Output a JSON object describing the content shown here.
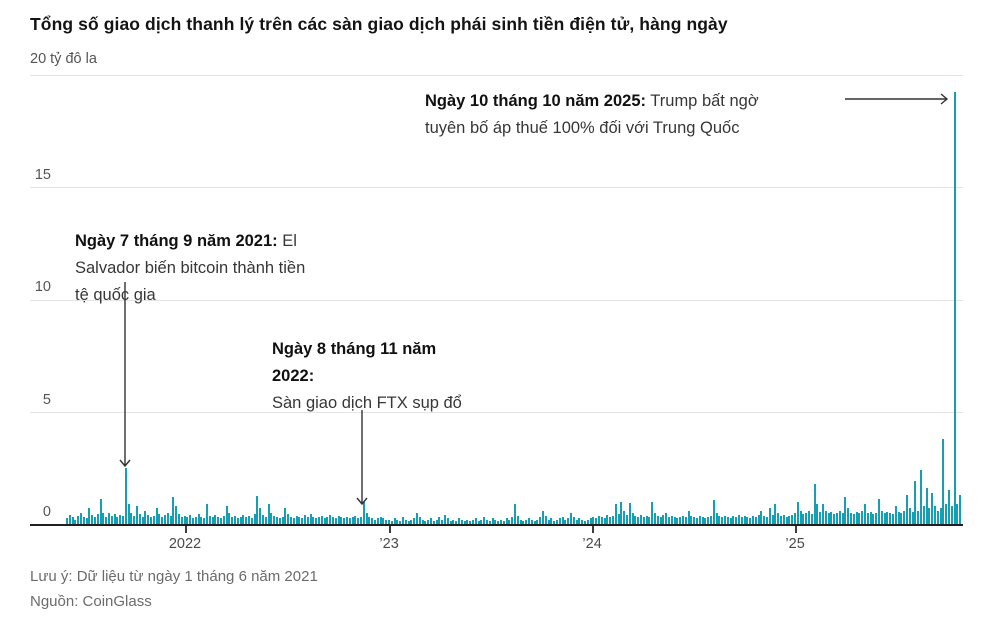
{
  "title": "Tổng số giao dịch thanh lý trên các sàn giao dịch phái sinh tiền điện tử, hàng ngày",
  "notes": {
    "line1": "Lưu ý: Dữ liệu từ ngày 1 tháng 6 năm 2021",
    "line2": "Nguồn: CoinGlass"
  },
  "colors": {
    "bar": "#169eb1",
    "grid": "#e4e4e4",
    "axis": "#1f1f1f",
    "labels": "#555555",
    "arrow": "#333333"
  },
  "chart_data": {
    "type": "bar",
    "title": "Tổng số giao dịch thanh lý trên các sàn giao dịch phái sinh tiền điện tử, hàng ngày",
    "unit_label": "20 tỷ đô la",
    "ylabel": "tỷ đô la",
    "ylim": [
      0,
      20
    ],
    "y_ticks": [
      0,
      5,
      10,
      15
    ],
    "grid_values": [
      5,
      10,
      15,
      20
    ],
    "x_range": [
      "6/2021",
      "10/2025"
    ],
    "x_ticks": [
      {
        "label": "2022",
        "bar_index": 42.5
      },
      {
        "label": "’23",
        "bar_index": 115.4
      },
      {
        "label": "’24",
        "bar_index": 187.9
      },
      {
        "label": "’25",
        "bar_index": 260.4
      }
    ],
    "values": [
      0.25,
      0.4,
      0.3,
      0.2,
      0.35,
      0.5,
      0.3,
      0.25,
      0.7,
      0.4,
      0.3,
      0.45,
      1.1,
      0.5,
      0.3,
      0.5,
      0.35,
      0.45,
      0.3,
      0.4,
      0.35,
      2.5,
      0.9,
      0.5,
      0.35,
      0.8,
      0.45,
      0.3,
      0.6,
      0.4,
      0.3,
      0.35,
      0.7,
      0.45,
      0.3,
      0.4,
      0.5,
      0.35,
      1.2,
      0.8,
      0.45,
      0.3,
      0.35,
      0.3,
      0.4,
      0.25,
      0.3,
      0.45,
      0.3,
      0.25,
      0.9,
      0.35,
      0.3,
      0.4,
      0.3,
      0.25,
      0.35,
      0.8,
      0.5,
      0.3,
      0.35,
      0.25,
      0.3,
      0.4,
      0.3,
      0.35,
      0.25,
      0.45,
      1.25,
      0.7,
      0.4,
      0.3,
      0.9,
      0.5,
      0.35,
      0.3,
      0.25,
      0.3,
      0.7,
      0.45,
      0.3,
      0.25,
      0.35,
      0.3,
      0.25,
      0.4,
      0.3,
      0.45,
      0.3,
      0.25,
      0.3,
      0.35,
      0.25,
      0.3,
      0.4,
      0.3,
      0.25,
      0.35,
      0.3,
      0.25,
      0.3,
      0.25,
      0.3,
      0.35,
      0.25,
      0.3,
      1.0,
      0.5,
      0.3,
      0.25,
      0.2,
      0.25,
      0.3,
      0.25,
      0.2,
      0.2,
      0.15,
      0.25,
      0.2,
      0.15,
      0.3,
      0.2,
      0.15,
      0.2,
      0.25,
      0.5,
      0.3,
      0.2,
      0.15,
      0.2,
      0.25,
      0.15,
      0.2,
      0.3,
      0.2,
      0.4,
      0.25,
      0.15,
      0.2,
      0.15,
      0.25,
      0.2,
      0.15,
      0.2,
      0.15,
      0.2,
      0.25,
      0.15,
      0.2,
      0.3,
      0.2,
      0.15,
      0.25,
      0.2,
      0.15,
      0.2,
      0.15,
      0.25,
      0.2,
      0.3,
      0.9,
      0.35,
      0.2,
      0.15,
      0.2,
      0.25,
      0.2,
      0.15,
      0.2,
      0.3,
      0.6,
      0.35,
      0.2,
      0.25,
      0.15,
      0.2,
      0.25,
      0.3,
      0.2,
      0.25,
      0.5,
      0.3,
      0.2,
      0.25,
      0.2,
      0.15,
      0.2,
      0.25,
      0.3,
      0.25,
      0.35,
      0.3,
      0.25,
      0.4,
      0.3,
      0.35,
      0.9,
      0.45,
      1.0,
      0.6,
      0.4,
      0.95,
      0.5,
      0.35,
      0.3,
      0.4,
      0.3,
      0.35,
      0.3,
      1.0,
      0.5,
      0.35,
      0.3,
      0.4,
      0.5,
      0.3,
      0.35,
      0.3,
      0.25,
      0.3,
      0.35,
      0.3,
      0.6,
      0.35,
      0.3,
      0.25,
      0.35,
      0.3,
      0.25,
      0.3,
      0.35,
      1.05,
      0.5,
      0.35,
      0.3,
      0.35,
      0.3,
      0.25,
      0.35,
      0.3,
      0.4,
      0.3,
      0.35,
      0.3,
      0.25,
      0.35,
      0.3,
      0.4,
      0.6,
      0.35,
      0.3,
      0.7,
      0.4,
      0.9,
      0.5,
      0.35,
      0.4,
      0.3,
      0.35,
      0.4,
      0.5,
      1.0,
      0.6,
      0.45,
      0.5,
      0.6,
      0.45,
      1.8,
      0.9,
      0.55,
      0.9,
      0.6,
      0.5,
      0.55,
      0.45,
      0.5,
      0.6,
      0.5,
      1.2,
      0.7,
      0.5,
      0.45,
      0.55,
      0.5,
      0.6,
      0.9,
      0.5,
      0.55,
      0.45,
      0.5,
      1.1,
      0.6,
      0.5,
      0.55,
      0.5,
      0.45,
      0.8,
      0.55,
      0.5,
      0.6,
      1.3,
      0.7,
      0.55,
      1.9,
      0.6,
      2.4,
      0.8,
      1.6,
      0.7,
      1.4,
      0.8,
      0.6,
      0.7,
      3.8,
      0.9,
      1.5,
      0.8,
      19.2,
      0.9,
      1.3
    ],
    "annotations": [
      {
        "name": "el-salvador",
        "y_value": 2.5,
        "lines": [
          {
            "bold": "Ngày 7 tháng 9 năm 2021:",
            "text": " El"
          },
          {
            "text": "Salvador biến bitcoin thành tiền"
          },
          {
            "text": "tệ quốc gia"
          }
        ]
      },
      {
        "name": "ftx-collapse",
        "y_value": 1.0,
        "lines": [
          {
            "bold": "Ngày 8 tháng 11 năm"
          },
          {
            "bold": "2022:"
          },
          {
            "text": "Sàn giao dịch FTX sụp đổ"
          }
        ]
      },
      {
        "name": "trump-tariff",
        "y_value": 19.2,
        "lines": [
          {
            "bold": "Ngày 10 tháng 10 năm 2025:",
            "text": " Trump bất ngờ"
          },
          {
            "text": "tuyên bố áp thuế 100% đối với Trung Quốc"
          }
        ]
      }
    ]
  }
}
